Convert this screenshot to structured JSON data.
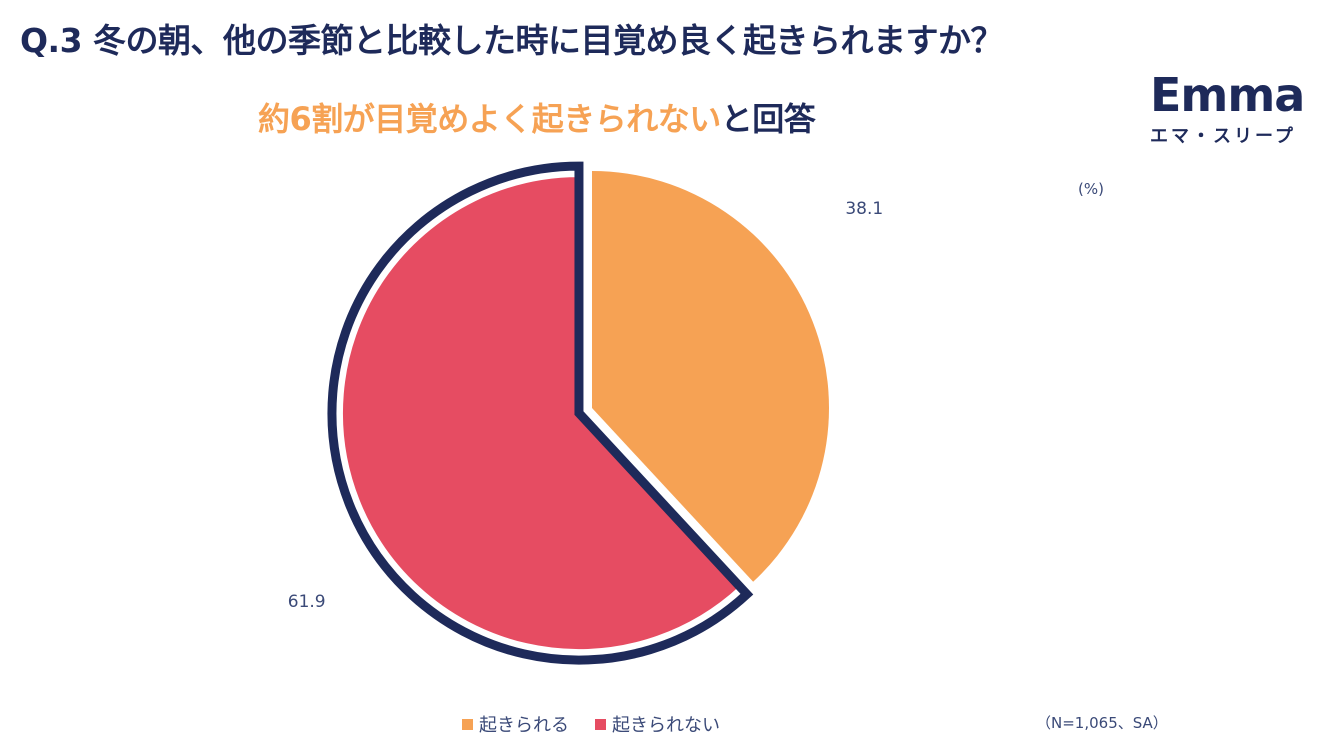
{
  "question": "Q.3 冬の朝、他の季節と比較した時に目覚め良く起きられますか？",
  "subtitle": {
    "highlight": "約6割が目覚めよく起きられない",
    "rest": "と回答"
  },
  "logo": {
    "word": "Emma",
    "kana": "エマ・スリープ"
  },
  "unit": "(%)",
  "note": "（N=1,065、SA）",
  "colors": {
    "navy": "#1e2a5a",
    "orange": "#f6a254",
    "red": "#e64c62"
  },
  "chart_data": {
    "type": "pie",
    "start": "12 o'clock",
    "direction": "clockwise",
    "categories": [
      "起きられる",
      "起きられない"
    ],
    "values": [
      38.1,
      61.9
    ],
    "value_labels": [
      "38.1",
      "61.9"
    ],
    "colors": [
      "#f6a254",
      "#e64c62"
    ],
    "highlighted": "起きられない",
    "legend": "bottom"
  }
}
